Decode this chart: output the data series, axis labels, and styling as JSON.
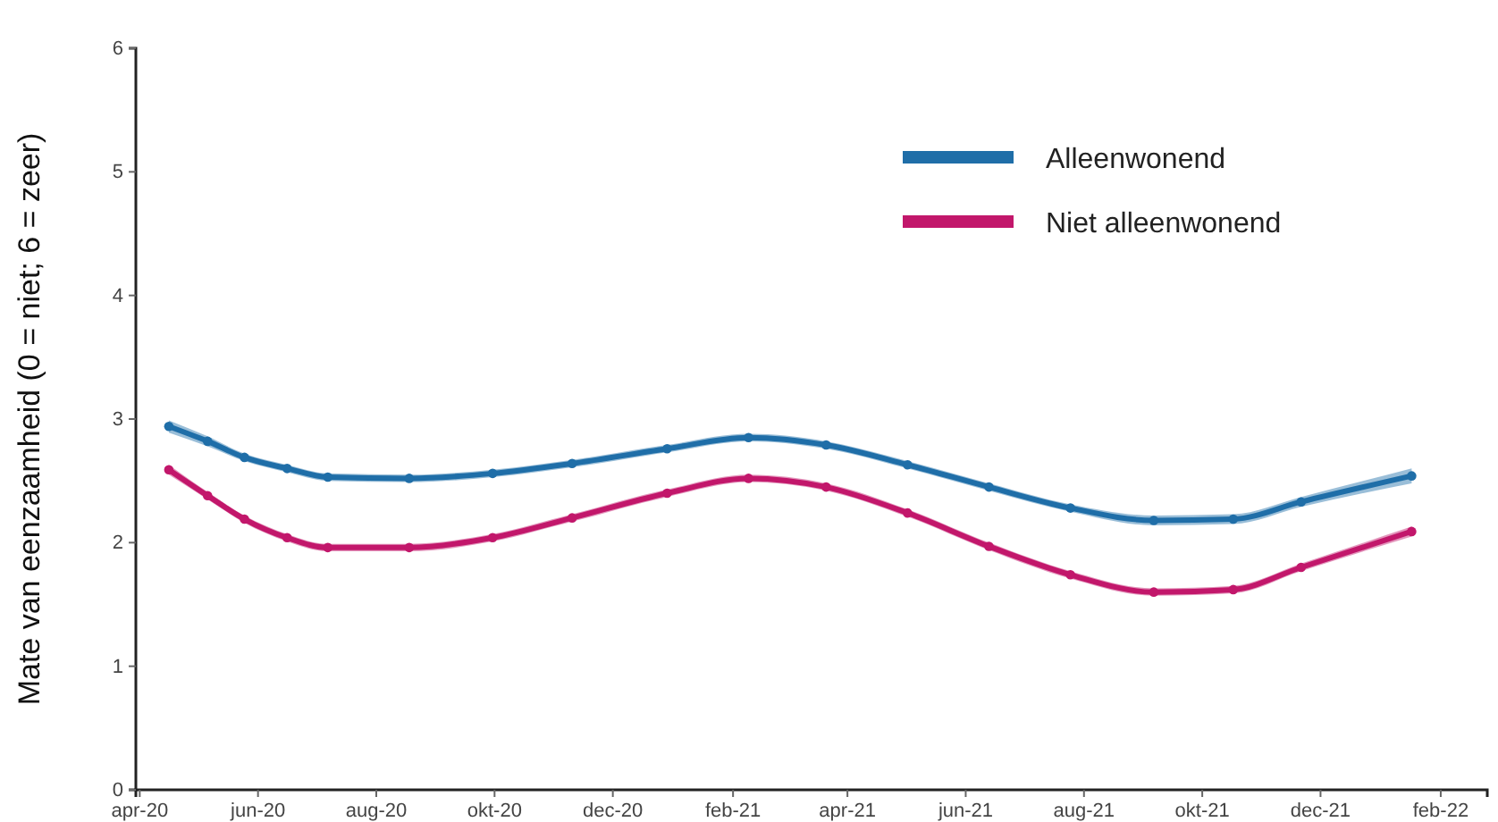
{
  "chart_data": {
    "type": "line",
    "ylabel": "Mate van eenzaamheid (0 = niet; 6 = zeer)",
    "xlim": [
      "2020-03-30",
      "2022-02-25"
    ],
    "xticks": [
      {
        "value": "2020-04-01",
        "label": "apr-20"
      },
      {
        "value": "2020-06-01",
        "label": "jun-20"
      },
      {
        "value": "2020-08-01",
        "label": "aug-20"
      },
      {
        "value": "2020-10-01",
        "label": "okt-20"
      },
      {
        "value": "2020-12-01",
        "label": "dec-20"
      },
      {
        "value": "2021-02-01",
        "label": "feb-21"
      },
      {
        "value": "2021-04-01",
        "label": "apr-21"
      },
      {
        "value": "2021-06-01",
        "label": "jun-21"
      },
      {
        "value": "2021-08-01",
        "label": "aug-21"
      },
      {
        "value": "2021-10-01",
        "label": "okt-21"
      },
      {
        "value": "2021-12-01",
        "label": "dec-21"
      },
      {
        "value": "2022-02-01",
        "label": "feb-22"
      }
    ],
    "ylim": [
      0,
      6
    ],
    "yticks": [
      0,
      1,
      2,
      3,
      4,
      5,
      6
    ],
    "grid": false,
    "legend": "top right",
    "marker": "circle",
    "line_style": "solid",
    "x": [
      "2020-04-16",
      "2020-05-06",
      "2020-05-25",
      "2020-06-16",
      "2020-07-07",
      "2020-08-18",
      "2020-09-30",
      "2020-11-10",
      "2020-12-29",
      "2021-02-09",
      "2021-03-21",
      "2021-05-02",
      "2021-06-13",
      "2021-07-25",
      "2021-09-06",
      "2021-10-17",
      "2021-11-21",
      "2022-01-17"
    ],
    "series": [
      {
        "name": "Alleenwonend",
        "color": "#1f6ea8",
        "values": [
          2.94,
          2.82,
          2.69,
          2.6,
          2.53,
          2.52,
          2.56,
          2.64,
          2.76,
          2.85,
          2.79,
          2.63,
          2.45,
          2.28,
          2.18,
          2.19,
          2.33,
          2.54
        ],
        "lower": [
          2.89,
          2.78,
          2.66,
          2.57,
          2.5,
          2.49,
          2.53,
          2.61,
          2.73,
          2.82,
          2.76,
          2.6,
          2.42,
          2.25,
          2.14,
          2.15,
          2.29,
          2.48
        ],
        "upper": [
          2.99,
          2.86,
          2.72,
          2.63,
          2.56,
          2.55,
          2.59,
          2.67,
          2.79,
          2.88,
          2.82,
          2.66,
          2.48,
          2.31,
          2.22,
          2.23,
          2.37,
          2.6
        ]
      },
      {
        "name": "Niet alleenwonend",
        "color": "#c2176b",
        "values": [
          2.59,
          2.38,
          2.19,
          2.04,
          1.96,
          1.96,
          2.04,
          2.2,
          2.4,
          2.52,
          2.45,
          2.24,
          1.97,
          1.74,
          1.6,
          1.62,
          1.8,
          2.09
        ],
        "lower": [
          2.55,
          2.35,
          2.16,
          2.01,
          1.93,
          1.93,
          2.01,
          2.17,
          2.37,
          2.49,
          2.42,
          2.21,
          1.94,
          1.71,
          1.57,
          1.59,
          1.77,
          2.05
        ],
        "upper": [
          2.63,
          2.41,
          2.22,
          2.07,
          1.99,
          1.99,
          2.07,
          2.23,
          2.43,
          2.55,
          2.48,
          2.27,
          2,
          1.77,
          1.63,
          1.65,
          1.83,
          2.13
        ]
      }
    ]
  }
}
